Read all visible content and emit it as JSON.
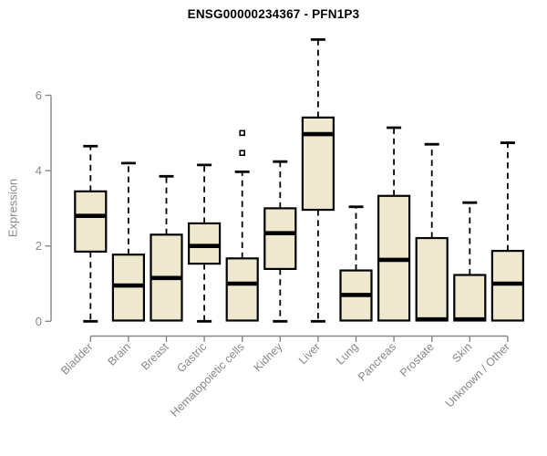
{
  "chart_data": {
    "type": "box",
    "title": "ENSG00000234367 - PFN1P3",
    "xlabel": "",
    "ylabel": "Expression",
    "ylim": [
      0,
      6
    ],
    "yticks": [
      "0",
      "2",
      "4",
      "6"
    ],
    "grid": false,
    "legend": false,
    "colors": {
      "box_fill": "#EDE8CE",
      "box_stroke": "#000000",
      "median": "#000000",
      "whisker": "#000000",
      "axis": "#888888",
      "tick_label": "#878787",
      "title": "#000000",
      "background": "#ffffff"
    },
    "boxes": [
      {
        "label": "Bladder",
        "whisker_low": 0,
        "q1": 1.85,
        "median": 2.8,
        "q3": 3.45,
        "whisker_high": 4.65,
        "outliers": []
      },
      {
        "label": "Brain",
        "whisker_low": 0,
        "q1": 0.02,
        "median": 0.95,
        "q3": 1.77,
        "whisker_high": 4.2,
        "outliers": []
      },
      {
        "label": "Breast",
        "whisker_low": 0,
        "q1": 0.02,
        "median": 1.15,
        "q3": 2.3,
        "whisker_high": 3.85,
        "outliers": []
      },
      {
        "label": "Gastric",
        "whisker_low": 0,
        "q1": 1.53,
        "median": 2.0,
        "q3": 2.6,
        "whisker_high": 4.15,
        "outliers": []
      },
      {
        "label": "Hematopoietic cells",
        "whisker_low": 0,
        "q1": 0.02,
        "median": 1.0,
        "q3": 1.67,
        "whisker_high": 3.97,
        "outliers": [
          4.47,
          5.0
        ]
      },
      {
        "label": "Kidney",
        "whisker_low": 0,
        "q1": 1.39,
        "median": 2.34,
        "q3": 3.0,
        "whisker_high": 4.24,
        "outliers": []
      },
      {
        "label": "Liver",
        "whisker_low": 0,
        "q1": 2.96,
        "median": 4.97,
        "q3": 5.41,
        "whisker_high": 7.48,
        "outliers": []
      },
      {
        "label": "Lung",
        "whisker_low": 0,
        "q1": 0.02,
        "median": 0.7,
        "q3": 1.35,
        "whisker_high": 3.04,
        "outliers": []
      },
      {
        "label": "Pancreas",
        "whisker_low": 0,
        "q1": 0.02,
        "median": 1.63,
        "q3": 3.33,
        "whisker_high": 5.14,
        "outliers": []
      },
      {
        "label": "Prostate",
        "whisker_low": 0,
        "q1": 0.02,
        "median": 0.05,
        "q3": 2.21,
        "whisker_high": 4.7,
        "outliers": []
      },
      {
        "label": "Skin",
        "whisker_low": 0,
        "q1": 0.02,
        "median": 0.05,
        "q3": 1.23,
        "whisker_high": 3.15,
        "outliers": []
      },
      {
        "label": "Unknown / Other",
        "whisker_low": 0,
        "q1": 0.02,
        "median": 1.0,
        "q3": 1.87,
        "whisker_high": 4.74,
        "outliers": []
      }
    ]
  }
}
